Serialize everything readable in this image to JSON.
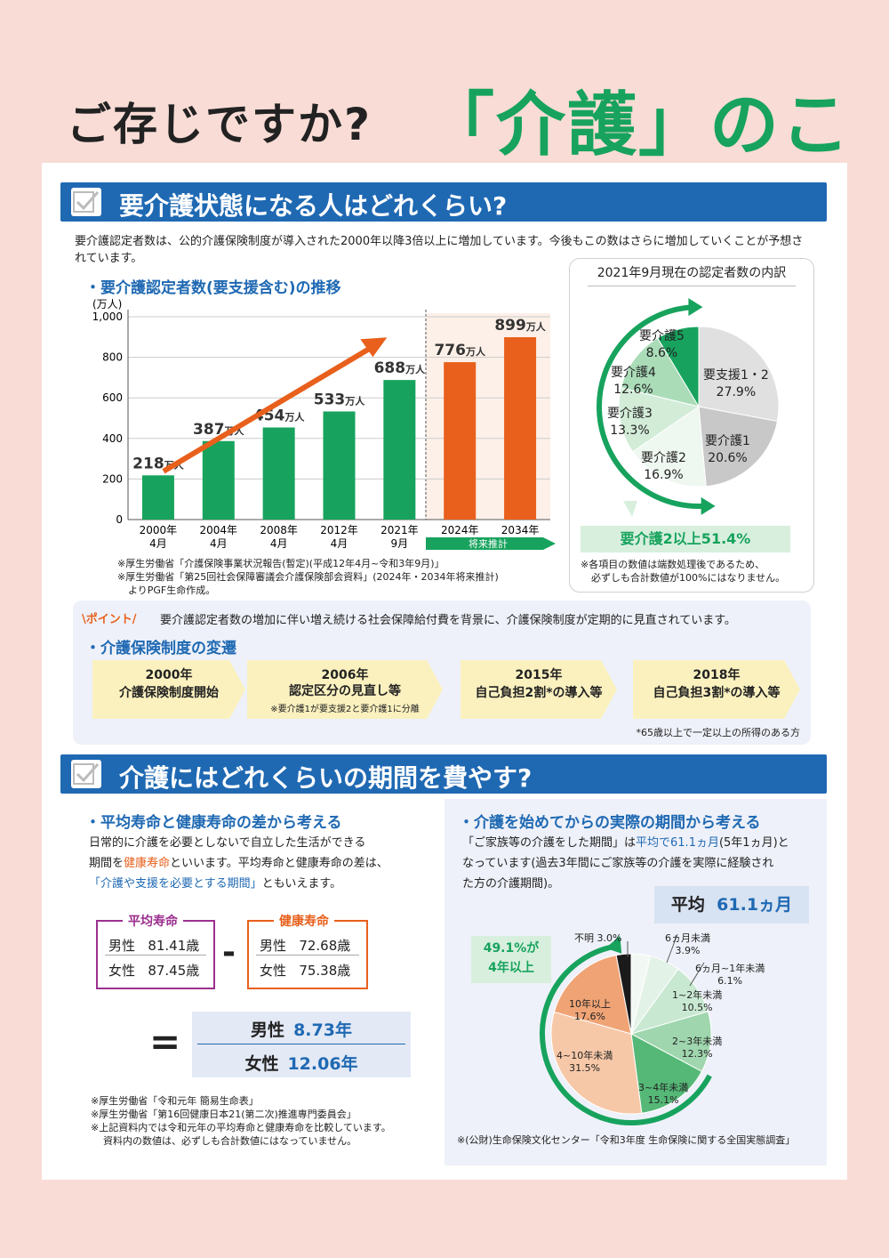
{
  "title": {
    "part1": "ご存じですか?",
    "part2": "「介護」のこと"
  },
  "section1": {
    "heading": "要介護状態になる人はどれくらい?",
    "intro": "要介護認定者数は、公的介護保険制度が導入された2000年以降3倍以上に増加しています。今後もこの数はさらに増加していくことが予想されています。",
    "chart_title": "・要介護認定者数(要支援含む)の推移",
    "future_label": "将来推計",
    "notes": [
      "※厚生労働省「介護保険事業状況報告(暫定)(平成12年4月~令和3年9月)」",
      "※厚生労働省「第25回社会保障審議会介護保険部会資料」(2024年・2034年将来推計)",
      "よりPGF生命作成。"
    ]
  },
  "chart_data": [
    {
      "type": "bar",
      "ylabel": "(万人)",
      "ylim": [
        0,
        1000
      ],
      "yticks": [
        "0",
        "200",
        "400",
        "600",
        "800",
        "1,000"
      ],
      "categories": [
        [
          "2000年",
          "4月"
        ],
        [
          "2004年",
          "4月"
        ],
        [
          "2008年",
          "4月"
        ],
        [
          "2012年",
          "4月"
        ],
        [
          "2021年",
          "9月"
        ],
        [
          "2024年",
          ""
        ],
        [
          "2034年",
          ""
        ]
      ],
      "values": [
        218,
        387,
        454,
        533,
        688,
        776,
        899
      ],
      "value_labels": [
        "218",
        "387",
        "454",
        "533",
        "688",
        "776",
        "899"
      ],
      "unit_label": "万人",
      "colors": {
        "actual": "#17a35d",
        "future": "#e8601c",
        "arrow": "#e8601c"
      }
    },
    {
      "type": "pie",
      "title": "2021年9月現在の認定者数の内訳",
      "slices": [
        {
          "name": "要支援1・2",
          "value": 27.9,
          "label": "27.9%",
          "color": "#e0e0e0"
        },
        {
          "name": "要介護1",
          "value": 20.6,
          "label": "20.6%",
          "color": "#c8c8c8"
        },
        {
          "name": "要介護2",
          "value": 16.9,
          "label": "16.9%",
          "color": "#eef7f0"
        },
        {
          "name": "要介護3",
          "value": 13.3,
          "label": "13.3%",
          "color": "#d2ecd8"
        },
        {
          "name": "要介護4",
          "value": 12.6,
          "label": "12.6%",
          "color": "#aadcb8"
        },
        {
          "name": "要介護5",
          "value": 8.6,
          "label": "8.6%",
          "color": "#17a35d"
        }
      ],
      "highlight": "要介護2以上51.4%",
      "note": [
        "※各項目の数値は端数処理後であるため、",
        "必ずしも合計数値が100%にはなりません。"
      ]
    },
    {
      "type": "pie",
      "title": "",
      "slices": [
        {
          "name": "6ヵ月未満",
          "value": 3.9,
          "label": "3.9%",
          "color": "#f2f9f4"
        },
        {
          "name": "6ヵ月~1年未満",
          "value": 6.1,
          "label": "6.1%",
          "color": "#e2f2e7"
        },
        {
          "name": "1~2年未満",
          "value": 10.5,
          "label": "10.5%",
          "color": "#c9e8d2"
        },
        {
          "name": "2~3年未満",
          "value": 12.3,
          "label": "12.3%",
          "color": "#9fd6ae"
        },
        {
          "name": "3~4年未満",
          "value": 15.1,
          "label": "15.1%",
          "color": "#55b877"
        },
        {
          "name": "4~10年未満",
          "value": 31.5,
          "label": "31.5%",
          "color": "#f7c8a8"
        },
        {
          "name": "10年以上",
          "value": 17.6,
          "label": "17.6%",
          "color": "#f0a476"
        },
        {
          "name": "不明",
          "value": 3.0,
          "label": "3.0%",
          "color": "#1a1a1a"
        }
      ],
      "highlight": [
        "49.1%が",
        "4年以上"
      ]
    }
  ],
  "point": {
    "badge": "ポイント",
    "text": "要介護認定者数の増加に伴い増え続ける社会保障給付費を背景に、介護保険制度が定期的に見直されています。",
    "subtitle": "・介護保険制度の変遷",
    "steps": [
      {
        "year": "2000年",
        "desc": "介護保険制度開始",
        "sub": ""
      },
      {
        "year": "2006年",
        "desc": "認定区分の見直し等",
        "sub": "※要介護1が要支援2と要介護1に分離"
      },
      {
        "year": "2015年",
        "desc": "自己負担2割*の導入等",
        "sub": ""
      },
      {
        "year": "2018年",
        "desc": "自己負担3割*の導入等",
        "sub": ""
      }
    ],
    "footnote": "*65歳以上で一定以上の所得のある方"
  },
  "section2": {
    "heading": "介護にはどれくらいの期間を費やす?",
    "left": {
      "subtitle": "・平均寿命と健康寿命の差から考える",
      "text1": "日常的に介護を必要としないで自立した生活ができる",
      "text2a": "期間を",
      "text2b": "健康寿命",
      "text2c": "といいます。平均寿命と健康寿命の差は、",
      "text3a": "「介護や支援を必要とする期間」",
      "text3b": "ともいえます。",
      "avg": {
        "title": "平均寿命",
        "male_label": "男性",
        "male": "81.41歳",
        "female_label": "女性",
        "female": "87.45歳"
      },
      "healthy": {
        "title": "健康寿命",
        "male_label": "男性",
        "male": "72.68歳",
        "female_label": "女性",
        "female": "75.38歳"
      },
      "minus": "-",
      "equals": "=",
      "result": {
        "male_label": "男性",
        "male": "8.73年",
        "female_label": "女性",
        "female": "12.06年"
      },
      "notes": [
        "※厚生労働省「令和元年 簡易生命表」",
        "※厚生労働省「第16回健康日本21(第二次)推進専門委員会」",
        "※上記資料内では令和元年の平均寿命と健康寿命を比較しています。",
        "資料内の数値は、必ずしも合計数値にはなっていません。"
      ]
    },
    "right": {
      "subtitle": "・介護を始めてからの実際の期間から考える",
      "text1a": "「ご家族等の介護をした期間」は",
      "text1b": "平均で61.1ヵ月",
      "text1c": "(5年1ヵ月)と",
      "text2": "なっています(過去3年間にご家族等の介護を実際に経験され",
      "text3": "た方の介護期間)。",
      "avg_label": "平均",
      "avg_value": "61.1ヵ月",
      "note": "※(公財)生命保険文化センター「令和3年度 生命保険に関する全国実態調査」"
    }
  }
}
